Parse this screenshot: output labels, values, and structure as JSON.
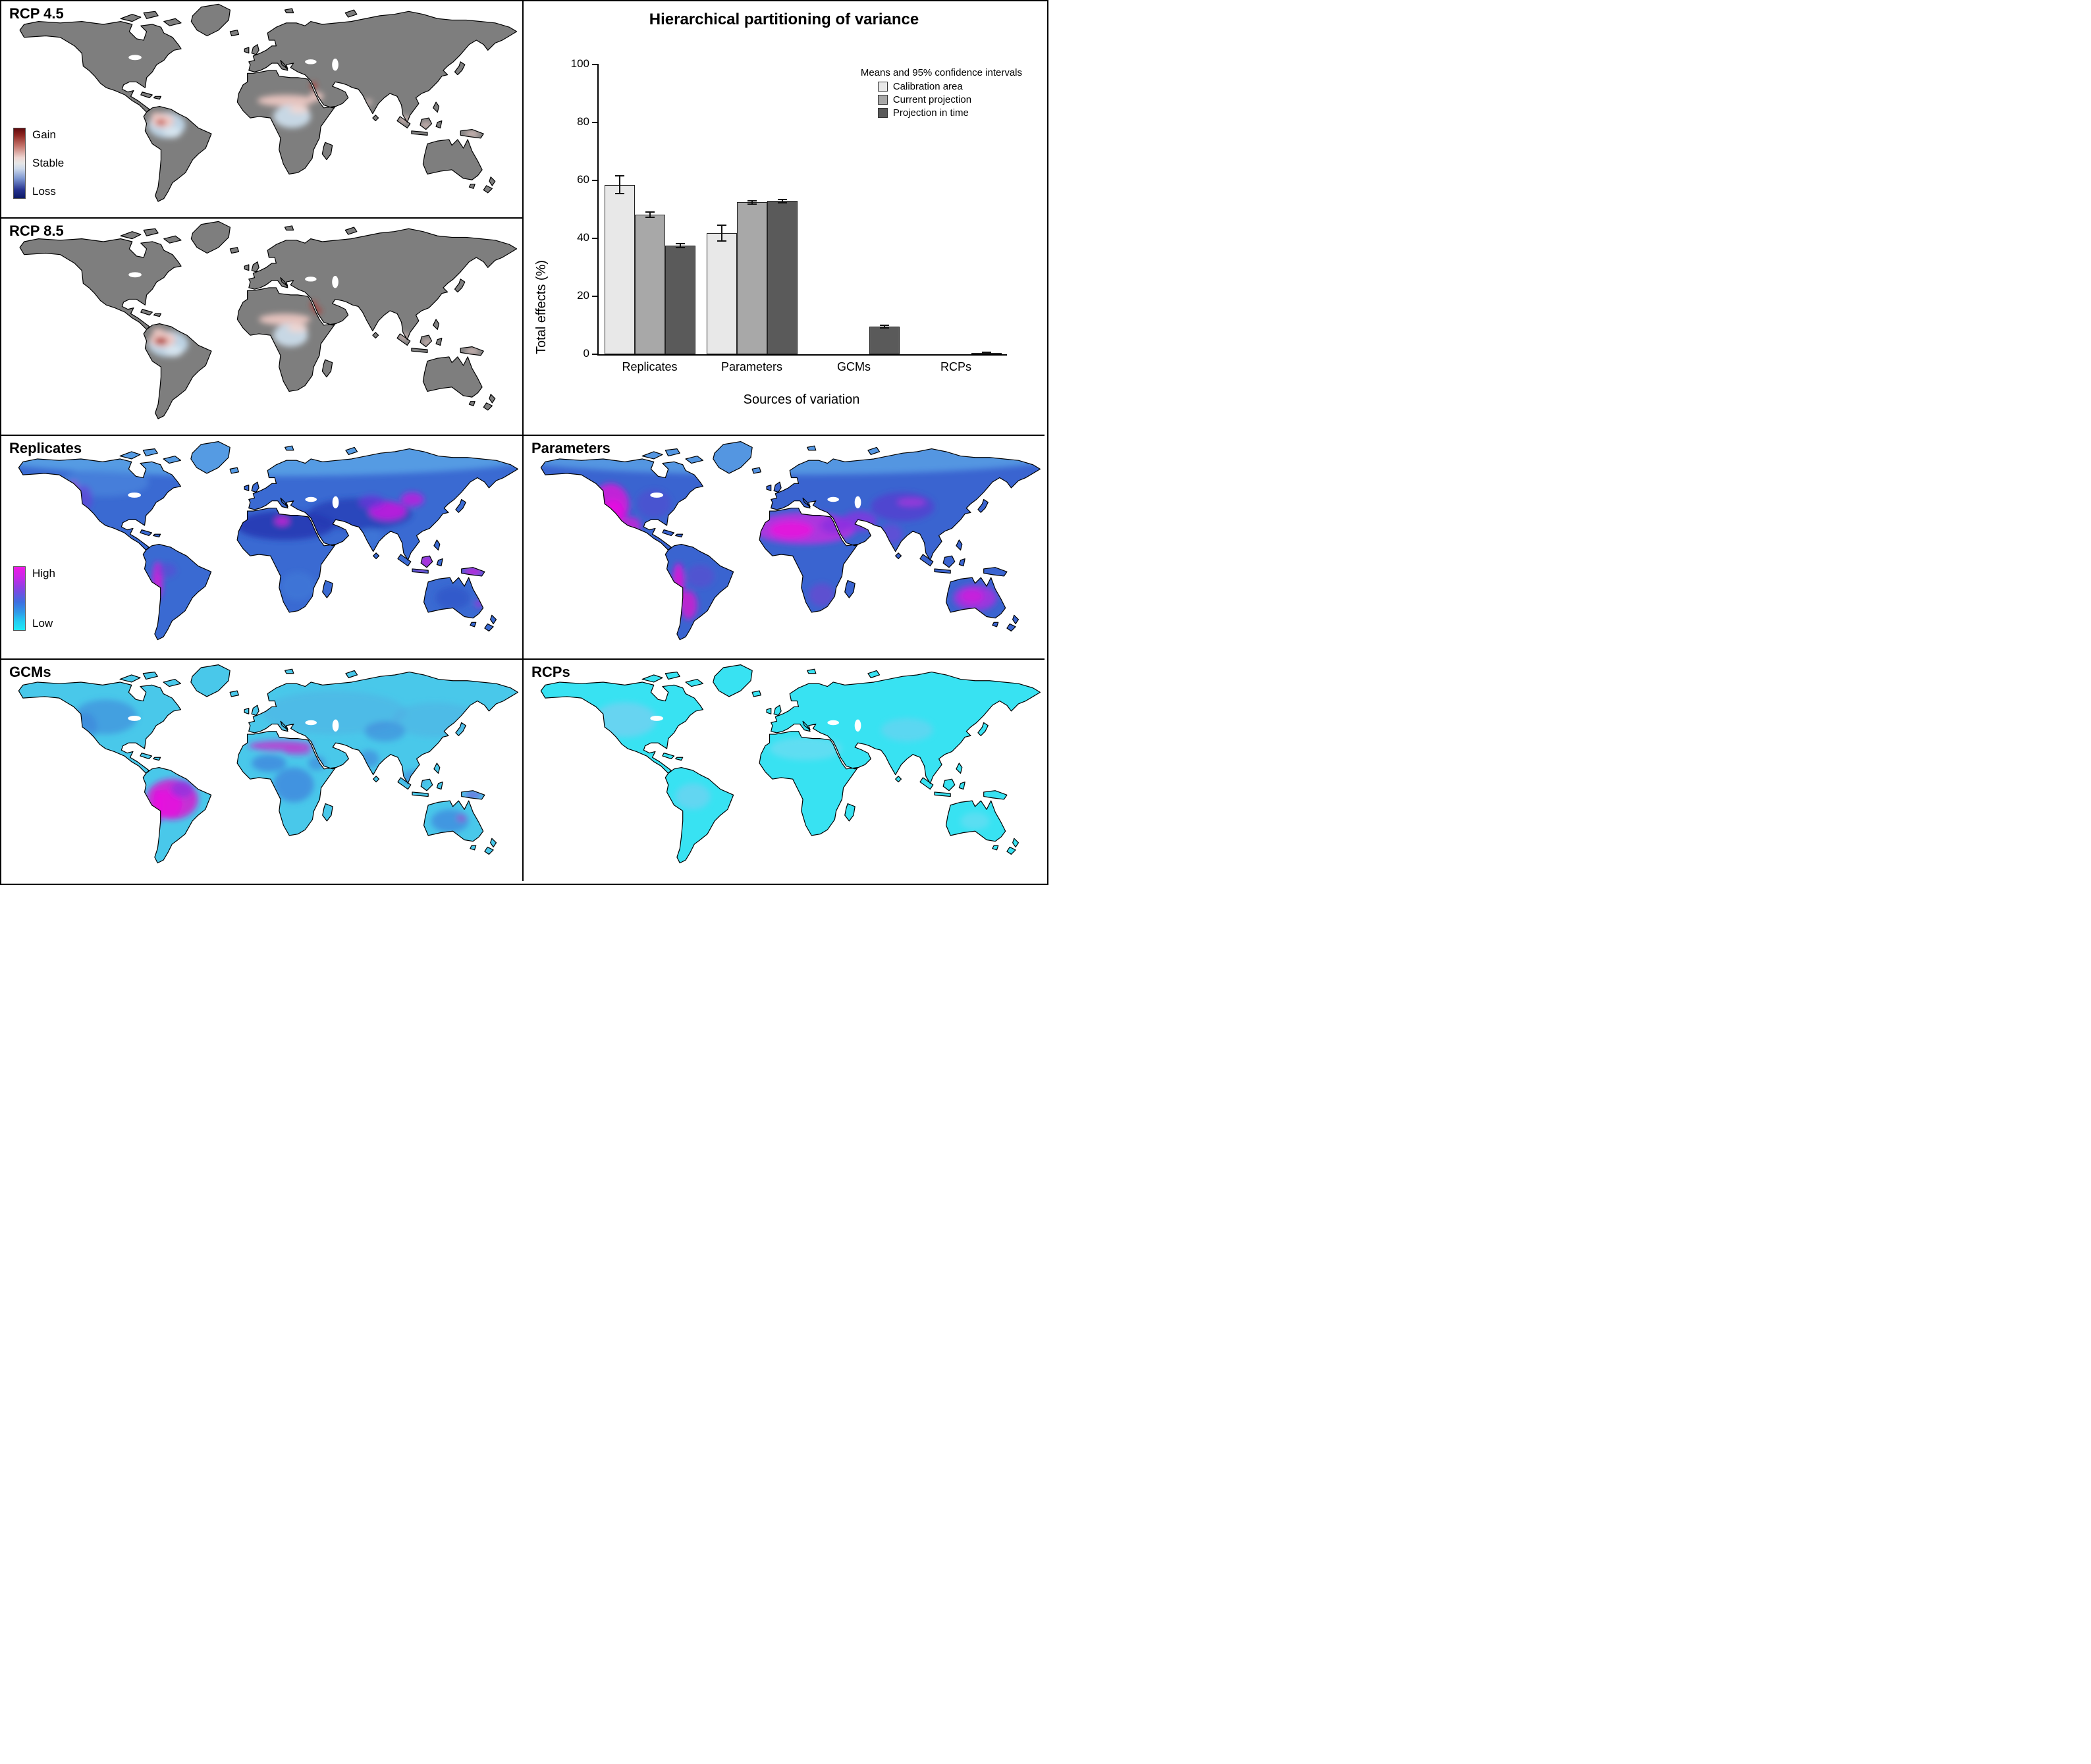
{
  "panels": {
    "rcp45": "RCP 4.5",
    "rcp85": "RCP 8.5",
    "replicates": "Replicates",
    "parameters": "Parameters",
    "gcms": "GCMs",
    "rcps": "RCPs"
  },
  "map_legends": {
    "gain_loss": {
      "gain": "Gain",
      "stable": "Stable",
      "loss": "Loss"
    },
    "high_low": {
      "high": "High",
      "low": "Low"
    }
  },
  "map_colors": {
    "land_gray": "#7e7e7e",
    "gain": "#8f1d1d",
    "loss": "#12127d",
    "high": "#ef1ae6",
    "low": "#1fe9f7"
  },
  "chart_data": {
    "type": "bar",
    "title": "Hierarchical partitioning of variance",
    "legend_title": "Means and 95% confidence intervals",
    "xlabel": "Sources of variation",
    "ylabel": "Total effects (%)",
    "ylim": [
      0,
      100
    ],
    "yticks": [
      0,
      20,
      40,
      60,
      80,
      100
    ],
    "categories": [
      "Replicates",
      "Parameters",
      "GCMs",
      "RCPs"
    ],
    "legend_position": "top-right",
    "grid": false,
    "series": [
      {
        "name": "Calibration area",
        "color": "#e8e8e8",
        "values": [
          58.5,
          41.8,
          null,
          null
        ],
        "ci": [
          [
            55.5,
            61.5
          ],
          [
            39.0,
            44.6
          ],
          null,
          null
        ]
      },
      {
        "name": "Current projection",
        "color": "#a8a8a8",
        "values": [
          48.2,
          52.4,
          null,
          null
        ],
        "ci": [
          [
            47.2,
            49.2
          ],
          [
            51.8,
            53.0
          ],
          null,
          null
        ]
      },
      {
        "name": "Projection in time",
        "color": "#5a5a5a",
        "values": [
          37.5,
          52.9,
          9.6,
          0.4
        ],
        "ci": [
          [
            36.8,
            38.2
          ],
          [
            52.3,
            53.5
          ],
          [
            9.1,
            10.1
          ],
          [
            0.2,
            0.6
          ]
        ]
      }
    ]
  }
}
